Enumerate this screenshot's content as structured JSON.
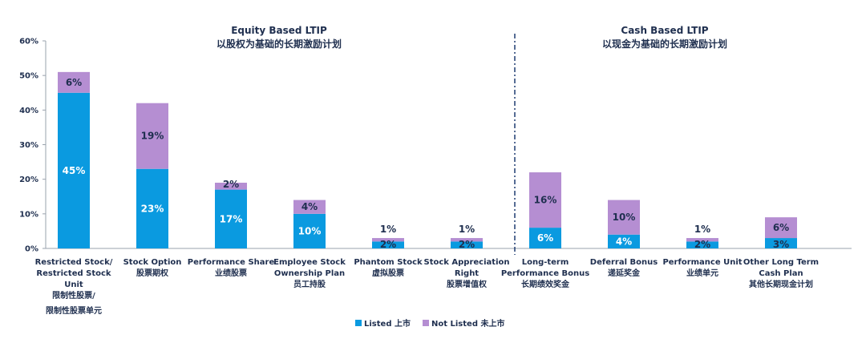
{
  "chart_data": {
    "type": "bar",
    "stacked": true,
    "yticks": [
      "0%",
      "10%",
      "20%",
      "30%",
      "40%",
      "50%",
      "60%"
    ],
    "ylim": [
      0,
      60
    ],
    "grid": false,
    "legend_position": "bottom",
    "groups": [
      {
        "title": "Equity Based LTIP",
        "subtitle": "以股权为基础的长期激励计划"
      },
      {
        "title": "Cash Based LTIP",
        "subtitle": "以现金为基础的长期激励计划"
      }
    ],
    "categories": [
      {
        "label": [
          "Restricted Stock/",
          "Restricted Stock",
          "Unit",
          "限制性股票/",
          "限制性股票单元"
        ]
      },
      {
        "label": [
          "Stock Option",
          "股票期权"
        ]
      },
      {
        "label": [
          "Performance Share",
          "业绩股票"
        ]
      },
      {
        "label": [
          "Employee Stock",
          "Ownership Plan",
          "员工持股"
        ]
      },
      {
        "label": [
          "Phantom Stock",
          "虚拟股票"
        ]
      },
      {
        "label": [
          "Stock Appreciation",
          "Right",
          "股票增值权"
        ]
      },
      {
        "label": [
          "Long-term",
          "Performance Bonus",
          "长期绩效奖金"
        ]
      },
      {
        "label": [
          "Deferral Bonus",
          "递延奖金"
        ]
      },
      {
        "label": [
          "Performance Unit",
          "业绩单元"
        ]
      },
      {
        "label": [
          "Other Long Term",
          "Cash Plan",
          "其他长期现金计划"
        ]
      }
    ],
    "series": [
      {
        "name": "Listed 上市",
        "color": "#0a9ae0",
        "values": [
          45,
          23,
          17,
          10,
          2,
          2,
          6,
          4,
          2,
          3
        ],
        "labels": [
          "45%",
          "23%",
          "17%",
          "10%",
          "2%",
          "2%",
          "6%",
          "4%",
          "2%",
          "3%"
        ]
      },
      {
        "name": "Not Listed 未上市",
        "color": "#b58ed2",
        "values": [
          6,
          19,
          2,
          4,
          1,
          1,
          16,
          10,
          1,
          6
        ],
        "labels": [
          "6%",
          "19%",
          "2%",
          "4%",
          "1%",
          "1%",
          "16%",
          "10%",
          "1%",
          "6%"
        ]
      }
    ]
  }
}
